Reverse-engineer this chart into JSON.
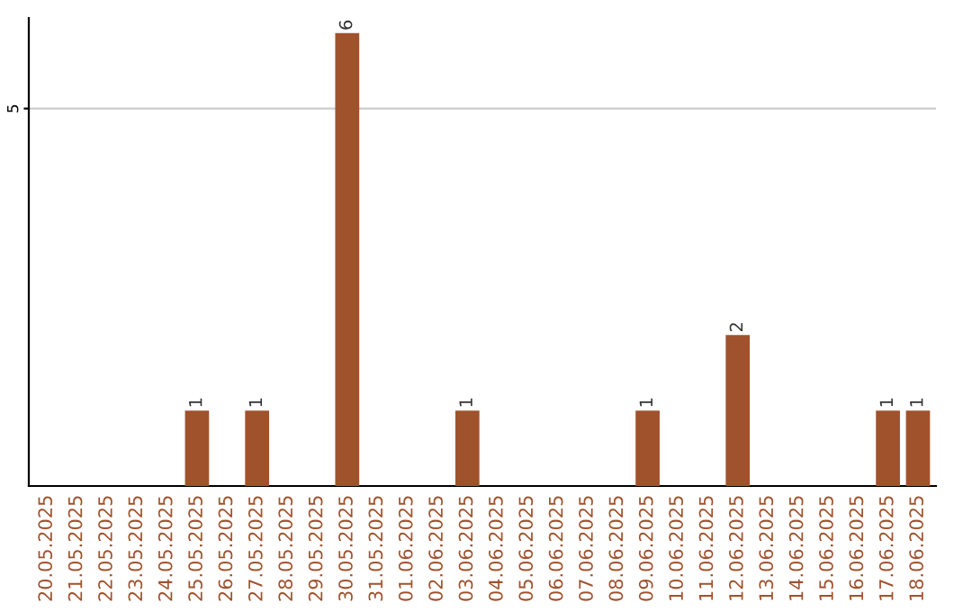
{
  "chart_data": {
    "type": "bar",
    "categories": [
      "20.05.2025",
      "21.05.2025",
      "22.05.2025",
      "23.05.2025",
      "24.05.2025",
      "25.05.2025",
      "26.05.2025",
      "27.05.2025",
      "28.05.2025",
      "29.05.2025",
      "30.05.2025",
      "31.05.2025",
      "01.06.2025",
      "02.06.2025",
      "03.06.2025",
      "04.06.2025",
      "05.06.2025",
      "06.06.2025",
      "07.06.2025",
      "08.06.2025",
      "09.06.2025",
      "10.06.2025",
      "11.06.2025",
      "12.06.2025",
      "13.06.2025",
      "14.06.2025",
      "15.06.2025",
      "16.06.2025",
      "17.06.2025",
      "18.06.2025"
    ],
    "values": [
      0,
      0,
      0,
      0,
      0,
      1,
      0,
      1,
      0,
      0,
      6,
      0,
      0,
      0,
      1,
      0,
      0,
      0,
      0,
      0,
      1,
      0,
      0,
      2,
      0,
      0,
      0,
      0,
      1,
      1
    ],
    "value_labels": [
      null,
      null,
      null,
      null,
      null,
      "1",
      null,
      "1",
      null,
      null,
      "6",
      null,
      null,
      null,
      "1",
      null,
      null,
      null,
      null,
      null,
      "1",
      null,
      null,
      "2",
      null,
      null,
      null,
      null,
      "1",
      "1"
    ],
    "color": "#a0522d",
    "ylim": [
      0,
      6.2
    ],
    "yticks": [
      5
    ],
    "grid": "y"
  }
}
